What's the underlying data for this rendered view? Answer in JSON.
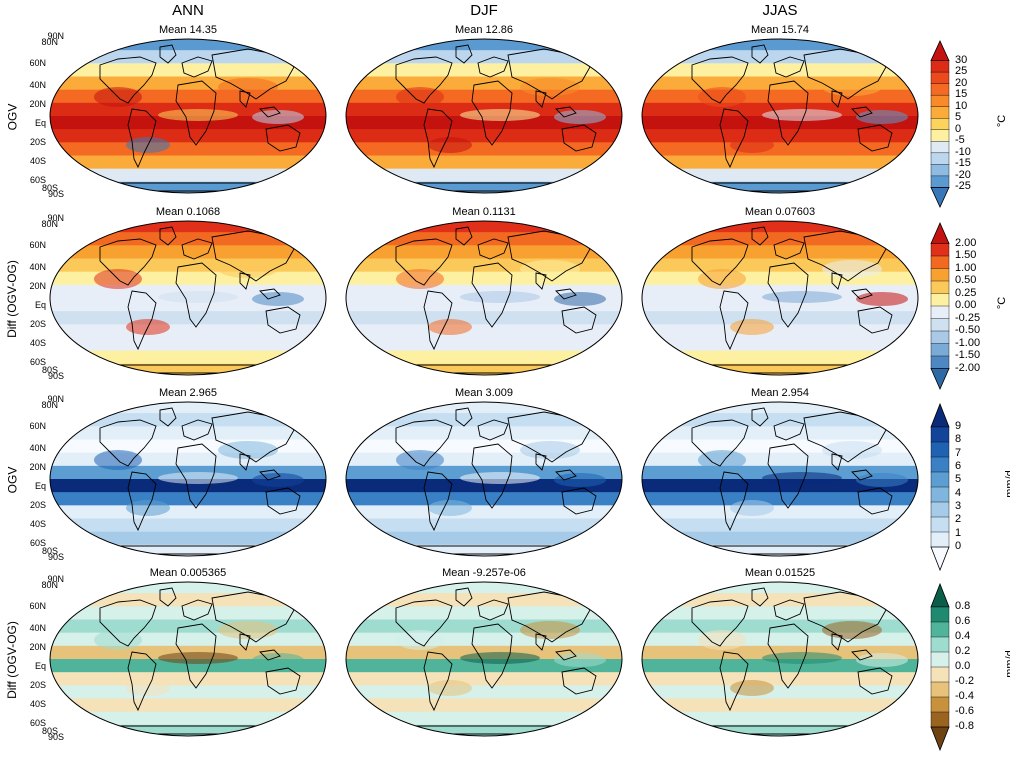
{
  "columns": [
    "ANN",
    "DJF",
    "JJAS"
  ],
  "rows": [
    {
      "label": "OGV",
      "palette": "temperature",
      "means": [
        "Mean 14.35",
        "Mean 12.86",
        "Mean 15.74"
      ],
      "colorbar": {
        "ticks": [
          "30",
          "25",
          "20",
          "15",
          "10",
          "5",
          "0",
          "-5",
          "-10",
          "-15",
          "-20",
          "-25"
        ],
        "unit": "°C",
        "colors": [
          "#c4120e",
          "#dd2c16",
          "#ec4a1c",
          "#f46a22",
          "#f88a2a",
          "#fbab3a",
          "#fcd35c",
          "#fdf0a0",
          "#dfe9f3",
          "#bcd6ee",
          "#8dbbe2",
          "#5b9ad0",
          "#3878b8"
        ]
      }
    },
    {
      "label": "Diff (OGV-OG)",
      "palette": "temperature-diff",
      "means": [
        "Mean 0.1068",
        "Mean 0.1131",
        "Mean 0.07603"
      ],
      "colorbar": {
        "ticks": [
          "2.00",
          "1.50",
          "1.00",
          "0.50",
          "0.25",
          "0.00",
          "-0.25",
          "-0.50",
          "-1.00",
          "-1.50",
          "-2.00"
        ],
        "unit": "°C",
        "colors": [
          "#c4120e",
          "#e0301a",
          "#f26a22",
          "#f8a030",
          "#fbc85a",
          "#fdf0a0",
          "#e8eef8",
          "#cfe0f0",
          "#a9c9e6",
          "#7aaad6",
          "#4d88c2",
          "#2f6aa8"
        ]
      }
    },
    {
      "label": "OGV",
      "palette": "precipitation",
      "means": [
        "Mean 2.965",
        "Mean 3.009",
        "Mean 2.954"
      ],
      "colorbar": {
        "ticks": [
          "9",
          "8",
          "7",
          "6",
          "5",
          "4",
          "3",
          "2",
          "1",
          "0"
        ],
        "unit": "mm/d",
        "colors": [
          "#0a2a7a",
          "#12449a",
          "#1f62b2",
          "#3a80c4",
          "#5c9ed2",
          "#80b6de",
          "#a6cbe8",
          "#c6def1",
          "#e2eef8",
          "#f7fbff"
        ]
      }
    },
    {
      "label": "Diff (OGV-OG)",
      "palette": "precipitation-diff",
      "means": [
        "Mean 0.005365",
        "Mean -9.257e-06",
        "Mean 0.01525"
      ],
      "colorbar": {
        "ticks": [
          "0.8",
          "0.6",
          "0.4",
          "0.2",
          "0.0",
          "-0.2",
          "-0.4",
          "-0.6",
          "-0.8"
        ],
        "unit": "mm/d",
        "colors": [
          "#0b5e4a",
          "#1f8a70",
          "#4fb49a",
          "#9fdcd0",
          "#d6f0ea",
          "#f5e2b8",
          "#e6c27a",
          "#c8923c",
          "#9a6420",
          "#6e4212"
        ]
      }
    }
  ],
  "lat_labels": [
    "90N",
    "80N",
    "60N",
    "40N",
    "20N",
    "Eq",
    "20S",
    "40S",
    "60S",
    "80S",
    "90S"
  ]
}
